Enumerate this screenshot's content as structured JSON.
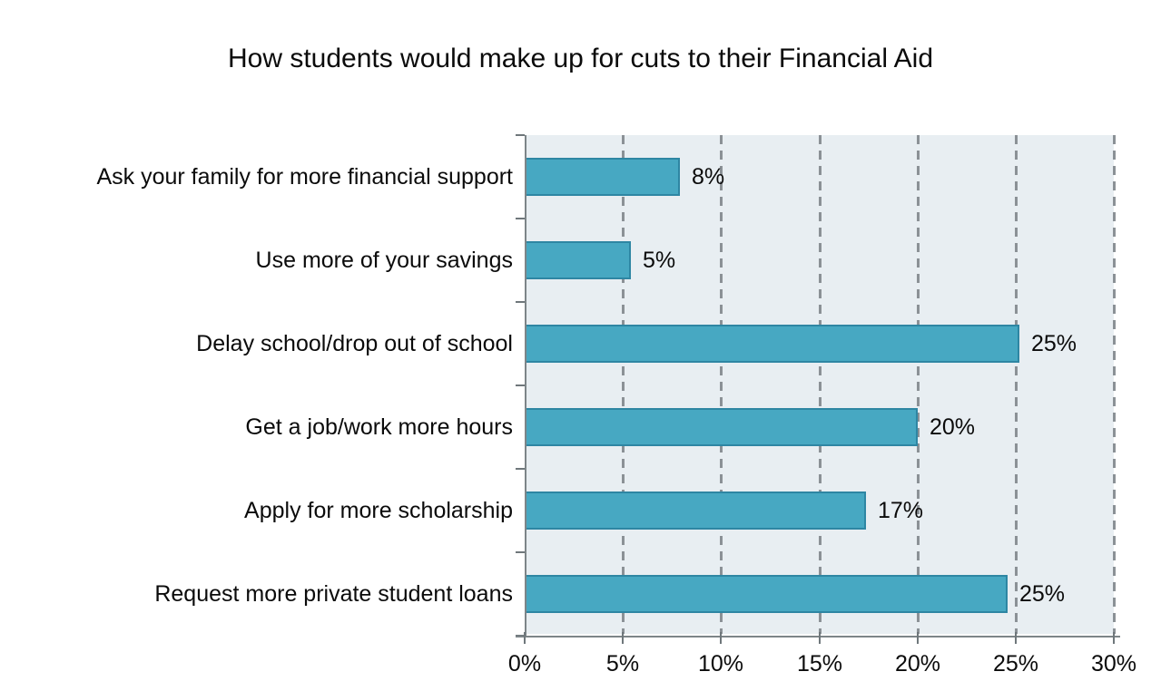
{
  "chart_data": {
    "type": "bar",
    "orientation": "horizontal",
    "title": "How students would make up for cuts to their Financial Aid",
    "categories": [
      "Ask your family for more financial support",
      "Use more of your savings",
      "Delay school/drop out of school",
      "Get a job/work more hours",
      "Apply for more scholarship",
      "Request more private student loans"
    ],
    "values": [
      8,
      5,
      25,
      20,
      17,
      25
    ],
    "value_labels": [
      "8%",
      "5%",
      "25%",
      "20%",
      "17%",
      "25%"
    ],
    "bar_visual_pct": [
      7.9,
      5.4,
      25.2,
      20.0,
      17.4,
      24.6
    ],
    "xlabel": "",
    "ylabel": "",
    "xlim": [
      0,
      30
    ],
    "x_ticks": [
      {
        "value": 0,
        "label": "0%"
      },
      {
        "value": 5,
        "label": "5%"
      },
      {
        "value": 10,
        "label": "10%"
      },
      {
        "value": 15,
        "label": "15%"
      },
      {
        "value": 20,
        "label": "20%"
      },
      {
        "value": 25,
        "label": "25%"
      },
      {
        "value": 30,
        "label": "30%"
      }
    ],
    "gridlines": {
      "style": "dashed",
      "orientation": "vertical",
      "at": [
        5,
        10,
        15,
        20,
        25,
        30
      ]
    },
    "legend": "none",
    "colors": {
      "bar_fill": "#47a8c2",
      "bar_border": "#2e86a3",
      "plot_background": "#e8eef2",
      "gridline": "#8b9196",
      "axis_line": "#7d8588",
      "tick": "#6f777b",
      "text": "#0b0b0b",
      "page_background": "#ffffff"
    }
  }
}
